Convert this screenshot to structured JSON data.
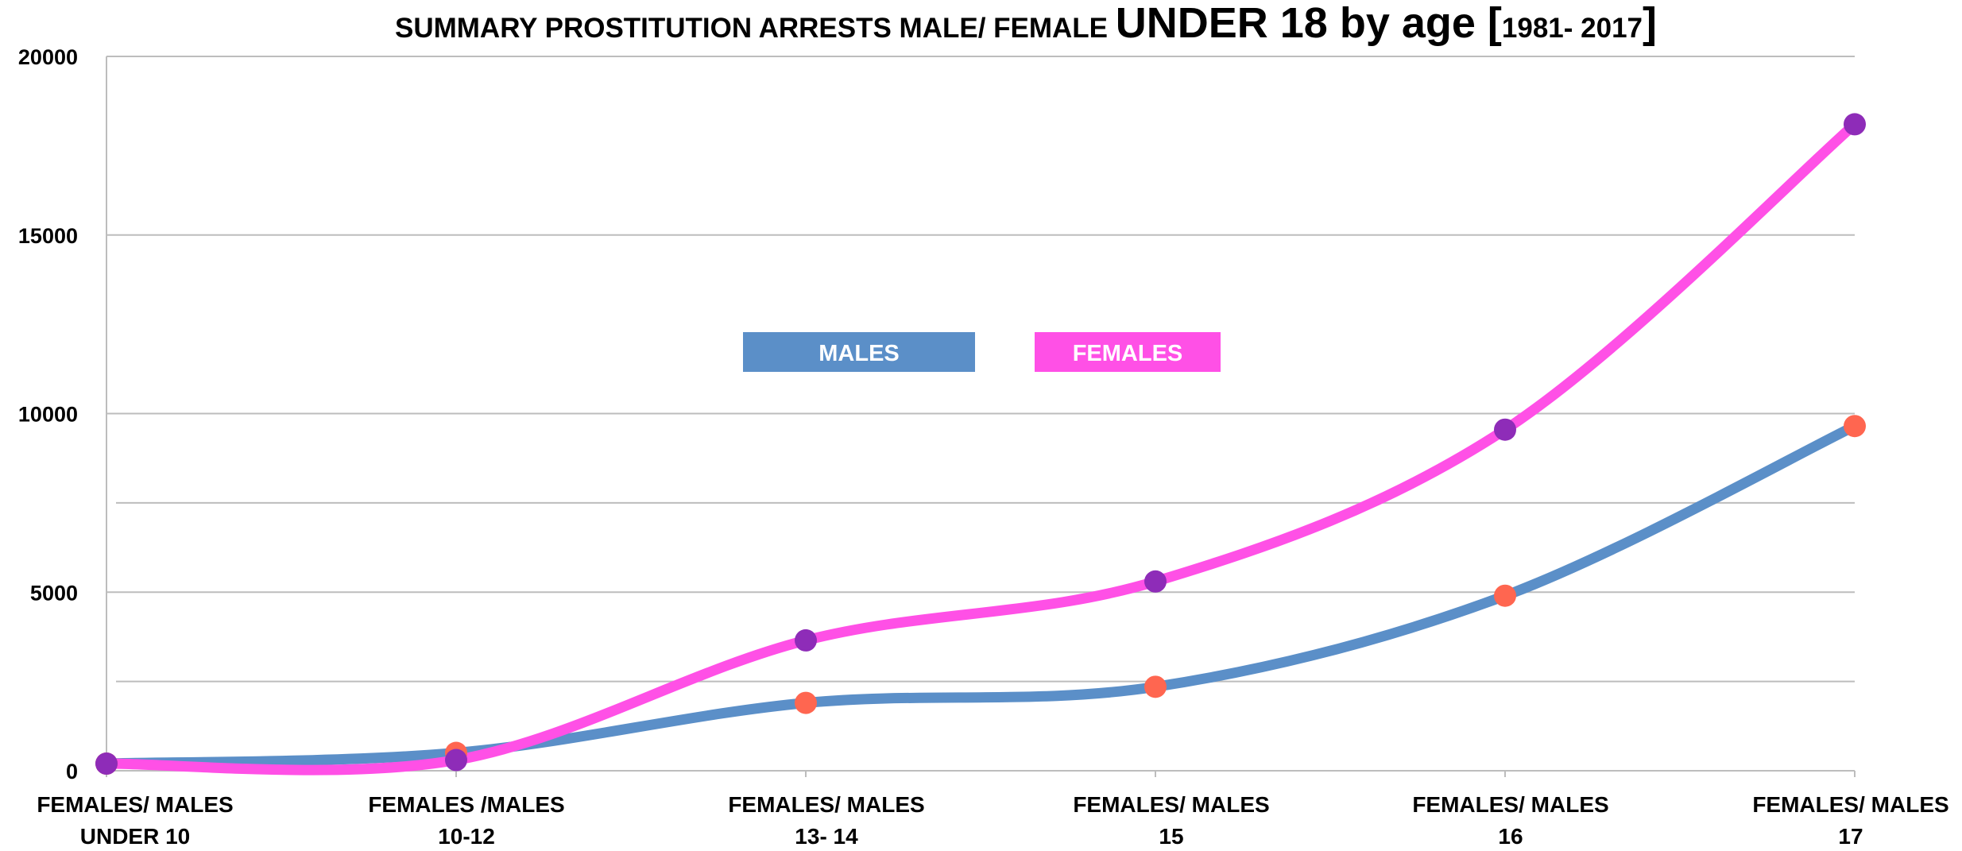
{
  "chart_data": {
    "type": "line",
    "title_parts": [
      "SUMMARY PROSTITUTION ARRESTS  MALE/ FEMALE ",
      "UNDER 18 by age [",
      "1981- 2017",
      "]"
    ],
    "categories": [
      [
        "FEMALES/ MALES",
        "UNDER 10"
      ],
      [
        "FEMALES /MALES",
        "10-12"
      ],
      [
        "FEMALES/ MALES",
        "13- 14"
      ],
      [
        "FEMALES/ MALES",
        "15"
      ],
      [
        "FEMALES/ MALES",
        "16"
      ],
      [
        "FEMALES/ MALES",
        "17"
      ]
    ],
    "series": [
      {
        "name": "MALES",
        "color": "#5b8fc8",
        "marker_color": "#ff6650",
        "values": [
          200,
          500,
          1900,
          2350,
          4900,
          9650
        ]
      },
      {
        "name": "FEMALES",
        "color": "#ff50e6",
        "marker_color": "#8e2cb8",
        "values": [
          200,
          300,
          3650,
          5300,
          9550,
          18100
        ]
      }
    ],
    "ylim": [
      0,
      20000
    ],
    "yticks": [
      0,
      5000,
      10000,
      15000,
      20000
    ],
    "minor_grid": [
      2500,
      7500
    ],
    "grid": true
  }
}
